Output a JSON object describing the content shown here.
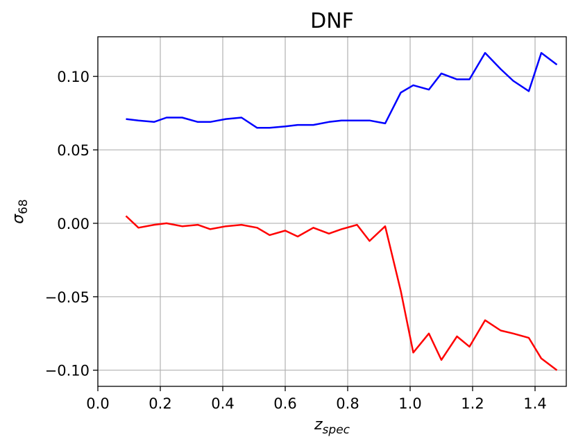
{
  "chart_data": {
    "type": "line",
    "title": "DNF",
    "xlabel": {
      "main": "z",
      "sub": "spec"
    },
    "ylabel": {
      "main": "σ",
      "sub": "68"
    },
    "xlim": [
      0.0,
      1.5
    ],
    "ylim": [
      -0.111,
      0.127
    ],
    "xticks": [
      0.0,
      0.2,
      0.4,
      0.6,
      0.8,
      1.0,
      1.2,
      1.4
    ],
    "xtick_labels": [
      "0.0",
      "0.2",
      "0.4",
      "0.6",
      "0.8",
      "1.0",
      "1.2",
      "1.4"
    ],
    "yticks": [
      -0.1,
      -0.05,
      0.0,
      0.05,
      0.1
    ],
    "ytick_labels": [
      "−0.10",
      "−0.05",
      "0.00",
      "0.05",
      "0.10"
    ],
    "grid": true,
    "legend": "none",
    "x": [
      0.09,
      0.13,
      0.18,
      0.22,
      0.27,
      0.32,
      0.36,
      0.41,
      0.46,
      0.51,
      0.55,
      0.6,
      0.64,
      0.69,
      0.74,
      0.78,
      0.83,
      0.87,
      0.92,
      0.97,
      1.01,
      1.06,
      1.1,
      1.15,
      1.19,
      1.24,
      1.29,
      1.33,
      1.38,
      1.42,
      1.47
    ],
    "series": [
      {
        "color": "#0000ff",
        "values": [
          0.071,
          0.07,
          0.069,
          0.072,
          0.072,
          0.069,
          0.069,
          0.071,
          0.072,
          0.065,
          0.065,
          0.066,
          0.067,
          0.067,
          0.069,
          0.07,
          0.07,
          0.07,
          0.068,
          0.089,
          0.094,
          0.091,
          0.102,
          0.098,
          0.098,
          0.116,
          0.105,
          0.097,
          0.09,
          0.116,
          0.108
        ]
      },
      {
        "color": "#ff0000",
        "values": [
          0.005,
          -0.003,
          -0.001,
          0.0,
          -0.002,
          -0.001,
          -0.004,
          -0.002,
          -0.001,
          -0.003,
          -0.008,
          -0.005,
          -0.009,
          -0.003,
          -0.007,
          -0.004,
          -0.001,
          -0.012,
          -0.002,
          -0.046,
          -0.088,
          -0.075,
          -0.093,
          -0.077,
          -0.084,
          -0.066,
          -0.073,
          -0.075,
          -0.078,
          -0.092,
          -0.1
        ]
      }
    ]
  }
}
